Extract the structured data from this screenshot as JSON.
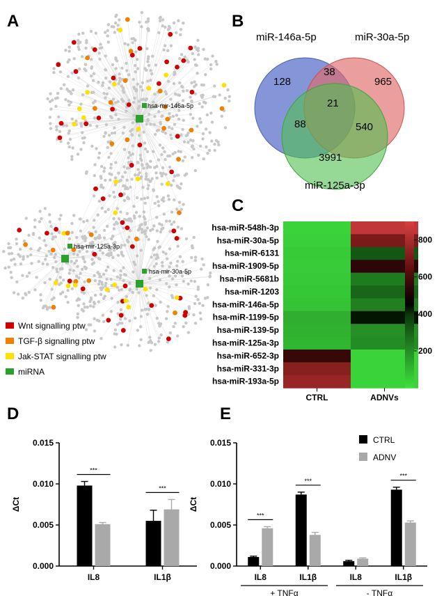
{
  "panels": {
    "a": "A",
    "b": "B",
    "c": "C",
    "d": "D",
    "e": "E"
  },
  "colors": {
    "wnt": "#d00000",
    "tgf": "#f08000",
    "jak": "#ffe000",
    "mirna": "#2ca02c",
    "grey": "#c8c8c8",
    "blue": "#5b73c9",
    "red": "#e06a6a",
    "green": "#4fbf4f",
    "black": "#000000",
    "lightgrey": "#a9a9a9"
  },
  "network": {
    "mirnas": [
      {
        "label": "hsa-mir-146a-5p"
      },
      {
        "label": "hsa-mir-125a-3p"
      },
      {
        "label": "hsa-mir-30a-5p"
      }
    ],
    "legend": [
      {
        "label": "Wnt signalling ptw",
        "color": "#d00000"
      },
      {
        "label": "TGF-β signalling ptw",
        "color": "#f08000"
      },
      {
        "label": "Jak-STAT signalling ptw",
        "color": "#ffe000"
      },
      {
        "label": "miRNA",
        "color": "#2ca02c"
      }
    ]
  },
  "chart_data": [
    {
      "type": "venn",
      "panel": "B",
      "sets": [
        "miR-146a-5p",
        "miR-30a-5p",
        "miR-125a-3p"
      ],
      "regions": {
        "a_only": 128,
        "b_only": 965,
        "c_only": 3991,
        "ab": 38,
        "ac": 88,
        "bc": 540,
        "abc": 21
      }
    },
    {
      "type": "heatmap",
      "panel": "C",
      "rows": [
        "hsa-miR-548h-3p",
        "hsa-miR-30a-5p",
        "hsa-miR-6131",
        "hsa-miR-1909-5p",
        "hsa-miR-5681b",
        "hsa-miR-1203",
        "hsa-miR-146a-5p",
        "hsa-miR-1199-5p",
        "hsa-miR-139-5p",
        "hsa-miR-125a-3p",
        "hsa-miR-652-3p",
        "hsa-miR-331-3p",
        "hsa-miR-193a-5p"
      ],
      "columns": [
        "CTRL",
        "ADNVs"
      ],
      "values": [
        [
          30,
          850
        ],
        [
          40,
          700
        ],
        [
          50,
          330
        ],
        [
          45,
          540
        ],
        [
          55,
          240
        ],
        [
          60,
          290
        ],
        [
          70,
          230
        ],
        [
          120,
          430
        ],
        [
          110,
          190
        ],
        [
          100,
          200
        ],
        [
          560,
          30
        ],
        [
          730,
          30
        ],
        [
          760,
          30
        ]
      ],
      "colorbar": {
        "min": 0,
        "max": 900,
        "ticks": [
          200,
          400,
          600,
          800
        ]
      }
    },
    {
      "type": "bar",
      "panel": "D",
      "ylabel": "ΔCt",
      "ylim": [
        0,
        0.015
      ],
      "yticks": [
        "0.000",
        "0.005",
        "0.010",
        "0.015"
      ],
      "categories": [
        "IL8",
        "IL1β"
      ],
      "series": [
        {
          "name": "CTRL",
          "values": [
            0.0098,
            0.0055
          ],
          "errors": [
            0.0005,
            0.0013
          ]
        },
        {
          "name": "ADNV",
          "values": [
            0.0051,
            0.0069
          ],
          "errors": [
            0.0002,
            0.0012
          ]
        }
      ],
      "significance": [
        "***",
        "***"
      ]
    },
    {
      "type": "bar",
      "panel": "E",
      "ylabel": "ΔCt",
      "ylim": [
        0,
        0.015
      ],
      "yticks": [
        "0.000",
        "0.005",
        "0.010",
        "0.015"
      ],
      "categories": [
        "IL8",
        "IL1β",
        "IL8",
        "IL1β"
      ],
      "groups": [
        "+ TNFα",
        "- TNFα"
      ],
      "series": [
        {
          "name": "CTRL",
          "values": [
            0.0011,
            0.0087,
            0.0006,
            0.0093
          ],
          "errors": [
            0.0001,
            0.0003,
            0.0001,
            0.0003
          ]
        },
        {
          "name": "ADNV",
          "values": [
            0.0046,
            0.0038,
            0.0009,
            0.0053
          ],
          "errors": [
            0.0002,
            0.0003,
            0.0001,
            0.0002
          ]
        }
      ],
      "significance": [
        "***",
        "***",
        "",
        "***"
      ],
      "legend": [
        "CTRL",
        "ADNV"
      ]
    }
  ]
}
